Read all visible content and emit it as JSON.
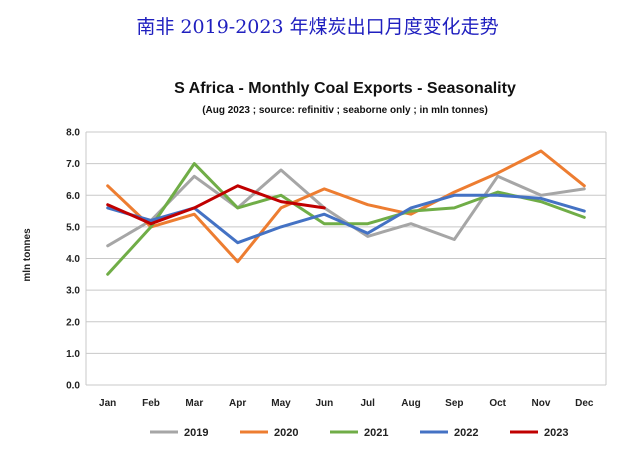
{
  "page": {
    "title": "南非 2019-2023 年煤炭出口月度变化走势"
  },
  "chart_data": {
    "type": "line",
    "title": "S Africa - Monthly Coal Exports - Seasonality",
    "subtitle": "(Aug 2023 ; source: refinitiv ; seaborne only ; in mln tonnes)",
    "xlabel": "",
    "ylabel": "mln tonnes",
    "ylim": [
      0,
      8
    ],
    "yticks": [
      "0.0",
      "1.0",
      "2.0",
      "3.0",
      "4.0",
      "5.0",
      "6.0",
      "7.0",
      "8.0"
    ],
    "categories": [
      "Jan",
      "Feb",
      "Mar",
      "Apr",
      "May",
      "Jun",
      "Jul",
      "Aug",
      "Sep",
      "Oct",
      "Nov",
      "Dec"
    ],
    "grid": true,
    "legend_position": "bottom",
    "series": [
      {
        "name": "2019",
        "color": "#a6a6a6",
        "values": [
          4.4,
          5.2,
          6.6,
          5.6,
          6.8,
          5.6,
          4.7,
          5.1,
          4.6,
          6.6,
          6.0,
          6.2
        ]
      },
      {
        "name": "2020",
        "color": "#ed7d31",
        "values": [
          6.3,
          5.0,
          5.4,
          3.9,
          5.6,
          6.2,
          5.7,
          5.4,
          6.1,
          6.7,
          7.4,
          6.3
        ]
      },
      {
        "name": "2021",
        "color": "#70ad47",
        "values": [
          3.5,
          5.0,
          7.0,
          5.6,
          6.0,
          5.1,
          5.1,
          5.5,
          5.6,
          6.1,
          5.8,
          5.3
        ]
      },
      {
        "name": "2022",
        "color": "#4472c4",
        "values": [
          5.6,
          5.2,
          5.6,
          4.5,
          5.0,
          5.4,
          4.8,
          5.6,
          6.0,
          6.0,
          5.9,
          5.5
        ]
      },
      {
        "name": "2023",
        "color": "#c00000",
        "values": [
          5.7,
          5.1,
          5.6,
          6.3,
          5.8,
          5.6,
          null,
          null,
          null,
          null,
          null,
          null
        ]
      }
    ]
  }
}
